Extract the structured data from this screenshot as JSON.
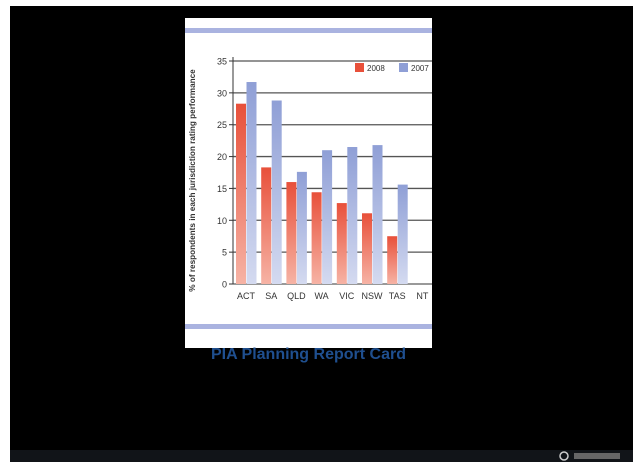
{
  "caption": "PIA Planning Report Card",
  "colors": {
    "series_2008": "#e8503a",
    "series_2007": "#8f9fd6",
    "accent_bar": "#aab3e0",
    "grid": "#555555"
  },
  "chart_data": {
    "type": "bar",
    "categories": [
      "ACT",
      "SA",
      "QLD",
      "WA",
      "VIC",
      "NSW",
      "TAS",
      "NT"
    ],
    "series": [
      {
        "name": "2008",
        "values": [
          28.3,
          18.3,
          16.0,
          14.4,
          12.7,
          11.1,
          7.5,
          null
        ]
      },
      {
        "name": "2007",
        "values": [
          31.7,
          28.8,
          17.6,
          21.0,
          21.5,
          21.8,
          15.6,
          null
        ]
      }
    ],
    "yticks": [
      0,
      5,
      10,
      15,
      20,
      25,
      30,
      35
    ],
    "ylim": [
      0,
      35
    ],
    "ylabel": "% of respondents in each jurisdiction rating performance",
    "xlabel": "",
    "title": "",
    "grid": true,
    "legend_position": "top-right"
  }
}
